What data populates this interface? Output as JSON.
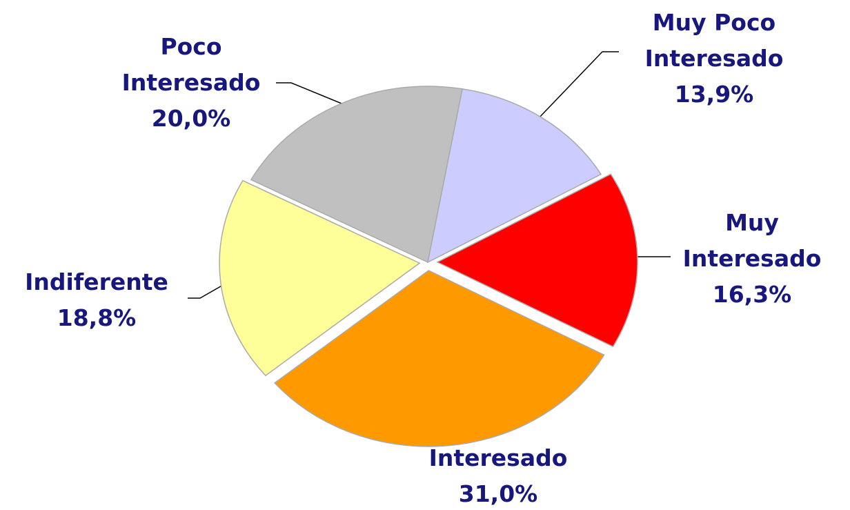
{
  "chart_data": {
    "type": "pie",
    "categories": [
      "Muy Interesado",
      "Interesado",
      "Indiferente",
      "Poco Interesado",
      "Muy Poco Interesado"
    ],
    "values": [
      16.3,
      31.0,
      18.8,
      20.0,
      13.9
    ],
    "value_labels": [
      "16,3%",
      "31,0%",
      "18,8%",
      "20,0%",
      "13,9%"
    ],
    "colors": [
      "#ff0000",
      "#ff9900",
      "#ffff99",
      "#c0c0c0",
      "#ccccff"
    ]
  }
}
